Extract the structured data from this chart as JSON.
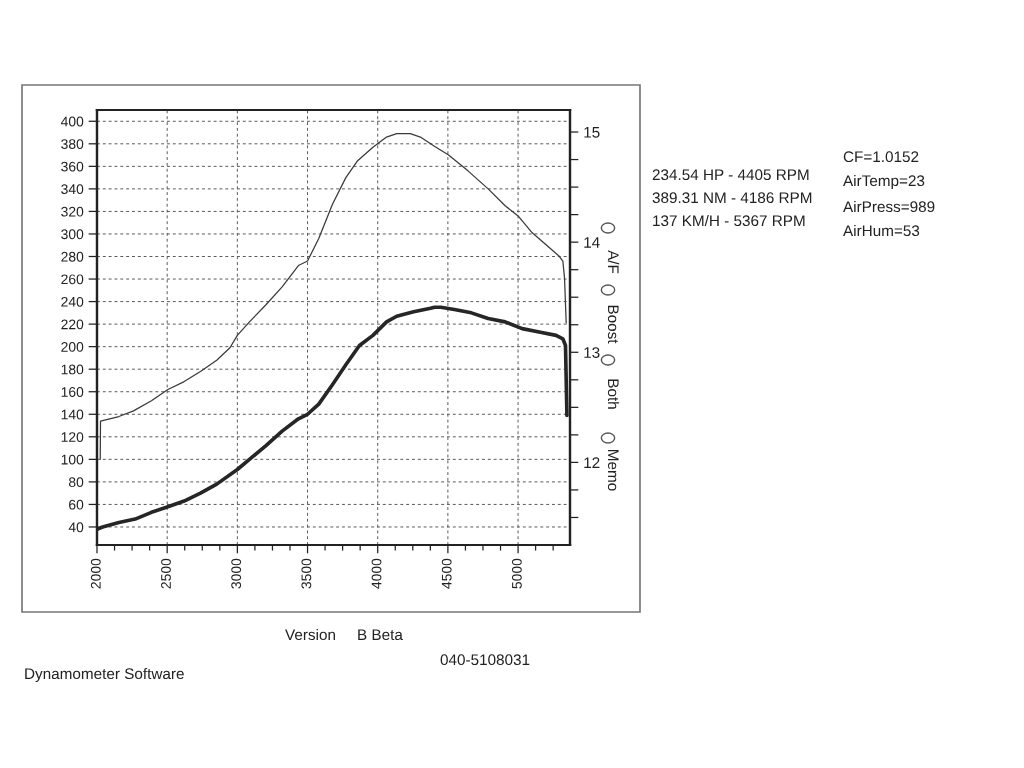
{
  "chart_data": {
    "type": "line",
    "x": [
      2000,
      2040,
      2156,
      2272,
      2388,
      2505,
      2621,
      2737,
      2853,
      3000,
      3086,
      3202,
      3319,
      3435,
      3500,
      3580,
      3676,
      3773,
      3870,
      3966,
      4063,
      4135,
      4256,
      4377,
      4405,
      4449,
      4546,
      4667,
      4787,
      4908,
      5029,
      5150,
      5271,
      5319,
      5338,
      5348
    ],
    "series": [
      {
        "color": "#262626",
        "values": [
          38,
          40,
          44,
          47,
          53,
          58,
          63,
          70,
          78,
          91,
          100,
          112,
          125,
          136,
          140,
          149,
          166,
          184,
          201,
          210,
          222,
          227,
          231,
          234,
          235,
          235,
          233,
          230,
          225,
          222,
          216,
          213,
          210,
          207,
          201,
          139
        ]
      },
      {
        "color": "#3a3a3a",
        "x": [
          2023,
          2025,
          2156,
          2260,
          2388,
          2505,
          2621,
          2737,
          2853,
          2947,
          3000,
          3086,
          3202,
          3319,
          3435,
          3500,
          3580,
          3676,
          3773,
          3857,
          3966,
          4063,
          4135,
          4186,
          4232,
          4304,
          4401,
          4505,
          4643,
          4787,
          4908,
          5000,
          5101,
          5222,
          5295,
          5319,
          5331,
          5343
        ],
        "values": [
          100,
          134,
          138,
          143,
          152,
          162,
          169,
          178,
          188,
          199,
          210,
          222,
          237,
          253,
          272,
          276,
          296,
          326,
          350,
          365,
          377,
          386,
          389,
          389,
          389,
          386,
          378,
          370,
          356,
          340,
          325,
          316,
          301,
          288,
          280,
          276,
          261,
          221
        ]
      }
    ],
    "xlim": [
      2000,
      5370
    ],
    "xticks": [
      2000,
      {
        "value": 2125,
        "label": null
      },
      {
        "value": 2250,
        "label": null
      },
      {
        "value": 2375,
        "label": null
      },
      2500,
      {
        "value": 2625,
        "label": null
      },
      {
        "value": 2750,
        "label": null
      },
      {
        "value": 2875,
        "label": null
      },
      3000,
      {
        "value": 3125,
        "label": null
      },
      {
        "value": 3250,
        "label": null
      },
      {
        "value": 3375,
        "label": null
      },
      3500,
      {
        "value": 3625,
        "label": null
      },
      {
        "value": 3750,
        "label": null
      },
      {
        "value": 3875,
        "label": null
      },
      4000,
      {
        "value": 4125,
        "label": null
      },
      {
        "value": 4250,
        "label": null
      },
      {
        "value": 4375,
        "label": null
      },
      4500,
      {
        "value": 4625,
        "label": null
      },
      {
        "value": 4750,
        "label": null
      },
      {
        "value": 4875,
        "label": null
      },
      5000,
      {
        "value": 5125,
        "label": null
      },
      {
        "value": 5250,
        "label": null
      }
    ],
    "ylim": [
      24,
      410
    ],
    "yticks": [
      40,
      60,
      80,
      100,
      120,
      140,
      160,
      180,
      200,
      220,
      240,
      260,
      280,
      300,
      320,
      340,
      360,
      380,
      400
    ],
    "y2lim": [
      11.25,
      15.2
    ],
    "y2ticks": [
      {
        "value": 11.5,
        "label": null
      },
      {
        "value": 11.75,
        "label": null
      },
      12,
      {
        "value": 12.25,
        "label": null
      },
      {
        "value": 12.5,
        "label": null
      },
      {
        "value": 12.75,
        "label": null
      },
      13,
      {
        "value": 13.25,
        "label": null
      },
      {
        "value": 13.5,
        "label": null
      },
      {
        "value": 13.75,
        "label": null
      },
      14,
      {
        "value": 14.25,
        "label": null
      },
      {
        "value": 14.5,
        "label": null
      },
      {
        "value": 14.75,
        "label": null
      },
      15
    ],
    "grid": true,
    "line_style": "solid",
    "annotations": [
      "234.54 HP - 4405 RPM",
      "389.31 NM - 4186 RPM",
      "137 KM/H - 5367 RPM",
      "CF=1.0152",
      "AirTemp=23",
      "AirPress=989",
      "AirHum=53",
      "A/F",
      "Boost",
      "Both",
      "Memo",
      "Version",
      "B Beta",
      "Dynamometer Software",
      "040-5108031"
    ]
  }
}
